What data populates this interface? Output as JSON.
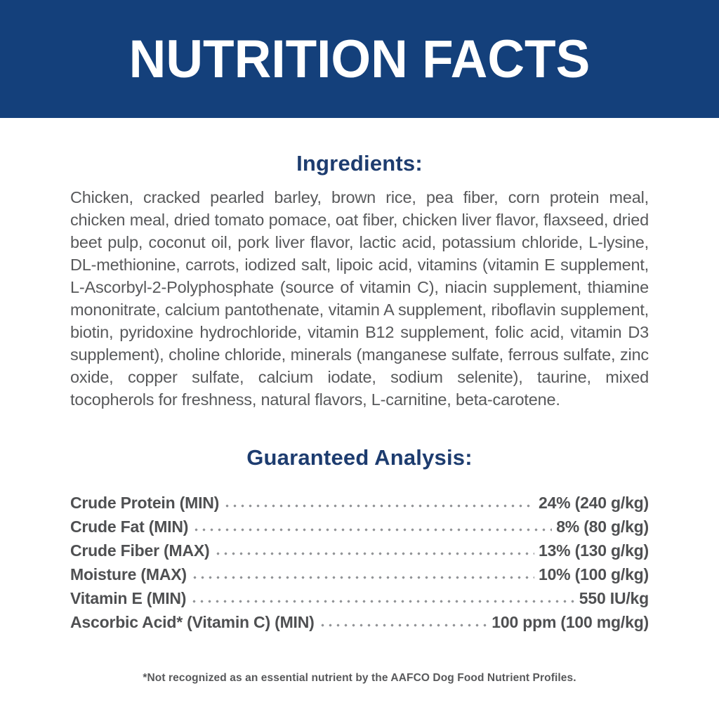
{
  "banner": {
    "title": "NUTRITION FACTS"
  },
  "ingredients": {
    "heading": "Ingredients:",
    "text": "Chicken, cracked pearled barley, brown rice, pea fiber, corn protein meal, chicken meal, dried tomato pomace, oat fiber, chicken liver flavor, flaxseed, dried beet pulp, coconut oil, pork liver flavor, lactic acid, potassium chloride, L-lysine, DL-methionine, carrots, iodized salt, lipoic acid, vitamins (vitamin E supplement, L-Ascorbyl-2-Polyphosphate (source of vitamin C), niacin supplement, thiamine mononitrate, calcium pantothenate, vitamin A supplement, riboflavin supplement, biotin, pyridoxine hydrochloride, vitamin B12 supplement, folic acid, vitamin D3 supplement), choline chloride, minerals (manganese sulfate, ferrous sulfate, zinc oxide, copper sulfate, calcium iodate, sodium selenite), taurine, mixed tocopherols for freshness, natural flavors, L-carnitine, beta-carotene."
  },
  "guaranteed_analysis": {
    "heading": "Guaranteed Analysis:",
    "rows": [
      {
        "label": "Crude Protein (MIN)",
        "value": "24% (240 g/kg)"
      },
      {
        "label": "Crude Fat (MIN)",
        "value": "8% (80 g/kg)"
      },
      {
        "label": "Crude Fiber (MAX)",
        "value": "13% (130 g/kg)"
      },
      {
        "label": "Moisture (MAX)",
        "value": "10% (100 g/kg)"
      },
      {
        "label": "Vitamin E (MIN)",
        "value": "550 IU/kg"
      },
      {
        "label": "Ascorbic Acid* (Vitamin C) (MIN)",
        "value": "100 ppm (100 mg/kg)"
      }
    ]
  },
  "footnote": "*Not recognized as an essential nutrient by the AAFCO Dog Food Nutrient Profiles.",
  "colors": {
    "banner_bg": "#14407b",
    "banner_text": "#ffffff",
    "heading": "#1d3c6f",
    "body_text": "#58595b",
    "row_text": "#4f5052",
    "leader_dots": "#939598"
  }
}
